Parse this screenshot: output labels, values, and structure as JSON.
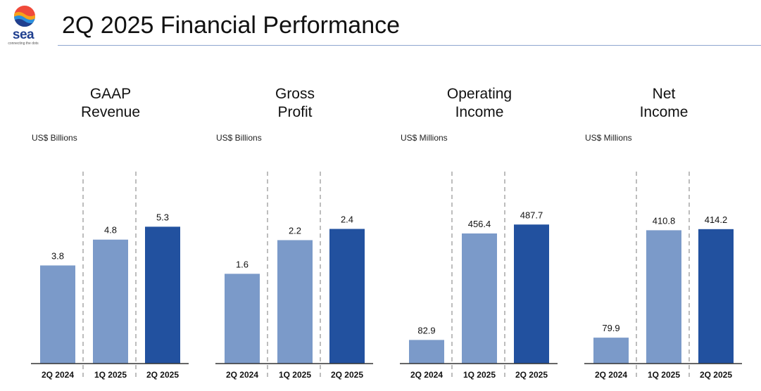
{
  "header": {
    "title": "2Q 2025 Financial Performance",
    "logo_word": "sea",
    "logo_tagline": "connecting the dots"
  },
  "colors": {
    "prior_bar": "#7b9ac9",
    "current_bar": "#22519f",
    "divider": "#bdbdbd",
    "axis": "#333333"
  },
  "chart_data": [
    {
      "type": "bar",
      "title_lines": [
        "GAAP",
        "Revenue"
      ],
      "unit": "US$ Billions",
      "categories": [
        "2Q 2024",
        "1Q 2025",
        "2Q 2025"
      ],
      "values": [
        3.8,
        4.8,
        5.3
      ],
      "value_labels": [
        "3.8",
        "4.8",
        "5.3"
      ],
      "ylim": [
        0,
        8.17
      ]
    },
    {
      "type": "bar",
      "title_lines": [
        "Gross",
        "Profit"
      ],
      "unit": "US$ Billions",
      "categories": [
        "2Q 2024",
        "1Q 2025",
        "2Q 2025"
      ],
      "values": [
        1.6,
        2.2,
        2.4
      ],
      "value_labels": [
        "1.6",
        "2.2",
        "2.4"
      ],
      "ylim": [
        0,
        3.76
      ]
    },
    {
      "type": "bar",
      "title_lines": [
        "Operating",
        "Income"
      ],
      "unit": "US$ Millions",
      "categories": [
        "2Q 2024",
        "1Q 2025",
        "2Q 2025"
      ],
      "values": [
        82.9,
        456.4,
        487.7
      ],
      "value_labels": [
        "82.9",
        "456.4",
        "487.7"
      ],
      "ylim": [
        0,
        740
      ]
    },
    {
      "type": "bar",
      "title_lines": [
        "Net",
        "Income"
      ],
      "unit": "US$ Millions",
      "categories": [
        "2Q 2024",
        "1Q 2025",
        "2Q 2025"
      ],
      "values": [
        79.9,
        410.8,
        414.2
      ],
      "value_labels": [
        "79.9",
        "410.8",
        "414.2"
      ],
      "ylim": [
        0,
        650
      ]
    }
  ]
}
